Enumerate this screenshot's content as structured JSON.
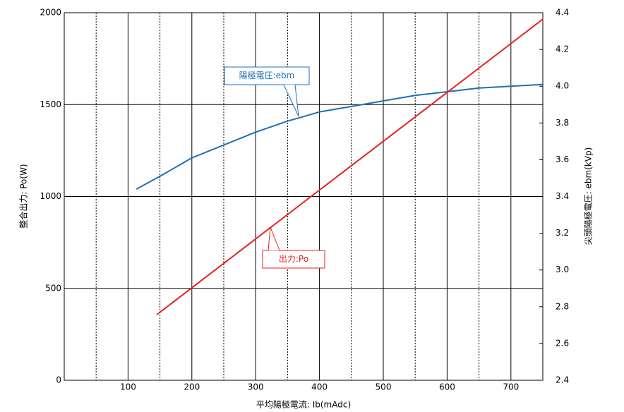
{
  "chart_data": {
    "type": "line",
    "x_label": "平均陽極電流: Ib(mAdc)",
    "y_label": "整合出力: Po(W)",
    "y2_label": "尖頭陽極電圧: ebm(kVp)",
    "xlim": [
      0,
      750
    ],
    "xticks": [
      100,
      200,
      300,
      400,
      500,
      600,
      700
    ],
    "xgrid_minor": [
      50,
      150,
      250,
      350,
      450,
      550,
      650
    ],
    "ylim": [
      0,
      2000
    ],
    "yticks": [
      0,
      500,
      1000,
      1500,
      2000
    ],
    "y2lim": [
      2.4,
      4.4
    ],
    "y2ticks": [
      2.4,
      2.6,
      2.8,
      {
        "value": 3,
        "label": "3.0"
      },
      3.2,
      3.4,
      3.6,
      3.8,
      {
        "value": 4,
        "label": "4.0"
      },
      4.2,
      4.4
    ],
    "grid": true,
    "series": [
      {
        "name": "陽極電圧:ebm",
        "color": "#1f6fb5",
        "axis": "y2",
        "x": [
          113,
          150,
          200,
          250,
          300,
          350,
          400,
          450,
          500,
          550,
          600,
          650,
          700,
          750
        ],
        "values": [
          3.44,
          3.51,
          3.61,
          3.68,
          3.75,
          3.81,
          3.86,
          3.89,
          3.92,
          3.95,
          3.97,
          3.99,
          4.0,
          4.01
        ]
      },
      {
        "name": "出力:Po",
        "color": "#e8201c",
        "x": [
          145,
          200,
          300,
          400,
          500,
          600,
          700,
          750
        ],
        "values": [
          357,
          503,
          769,
          1035,
          1300,
          1566,
          1832,
          1965
        ]
      }
    ]
  }
}
